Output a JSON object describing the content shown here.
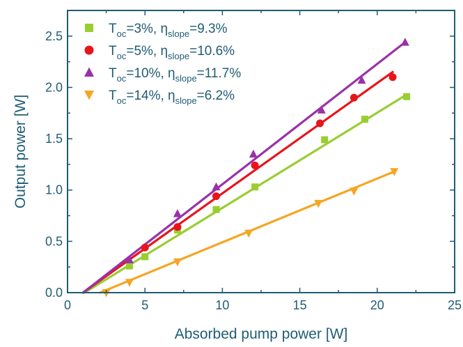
{
  "chart_data": {
    "type": "scatter",
    "title": "",
    "xlabel": "Absorbed pump power [W]",
    "ylabel": "Output power [W]",
    "xlim": [
      0,
      25
    ],
    "ylim": [
      0,
      2.75
    ],
    "xticks": [
      0,
      5,
      10,
      15,
      20,
      25
    ],
    "yticks": [
      0.0,
      0.5,
      1.0,
      1.5,
      2.0,
      2.5
    ],
    "xtick_labels": [
      "0",
      "5",
      "10",
      "15",
      "20",
      "25"
    ],
    "ytick_labels": [
      "0.0",
      "0.5",
      "1.0",
      "1.5",
      "2.0",
      "2.5"
    ],
    "grid": false,
    "legend_position": "top-left",
    "series": [
      {
        "name": "T_oc=3%, η_slope=9.3%",
        "legend": {
          "a": "T",
          "a_sub": "oc",
          "b": "=3%, η",
          "b_sub": "slope",
          "c": "=9.3%"
        },
        "marker": "square",
        "color": "#9acd32",
        "x": [
          4.0,
          5.0,
          7.1,
          9.6,
          12.1,
          16.6,
          19.2,
          21.9
        ],
        "y": [
          0.26,
          0.35,
          0.61,
          0.81,
          1.03,
          1.49,
          1.69,
          1.91
        ],
        "fit": [
          [
            1.1,
            0.0
          ],
          [
            21.9,
            1.93
          ]
        ]
      },
      {
        "name": "T_oc=5%, η_slope=10.6%",
        "legend": {
          "a": "T",
          "a_sub": "oc",
          "b": "=5%, η",
          "b_sub": "slope",
          "c": "=10.6%"
        },
        "marker": "circle",
        "color": "#e8141b",
        "x": [
          5.0,
          7.1,
          9.6,
          12.1,
          16.3,
          18.5,
          21.0
        ],
        "y": [
          0.44,
          0.64,
          0.94,
          1.24,
          1.65,
          1.9,
          2.1
        ],
        "fit": [
          [
            1.0,
            0.0
          ],
          [
            21.0,
            2.15
          ]
        ]
      },
      {
        "name": "T_oc=10%, η_slope=11.7%",
        "legend": {
          "a": "T",
          "a_sub": "oc",
          "b": "=10%, η",
          "b_sub": "slope",
          "c": "=11.7%"
        },
        "marker": "triangle-up",
        "color": "#9932a8",
        "x": [
          4.0,
          7.1,
          9.6,
          12.0,
          16.4,
          19.0,
          21.8
        ],
        "y": [
          0.32,
          0.77,
          1.03,
          1.35,
          1.78,
          2.07,
          2.44
        ],
        "fit": [
          [
            1.0,
            0.0
          ],
          [
            21.8,
            2.44
          ]
        ]
      },
      {
        "name": "T_oc=14%, η_slope=6.2%",
        "legend": {
          "a": "T",
          "a_sub": "oc",
          "b": "=14%, η",
          "b_sub": "slope",
          "c": "=6.2%"
        },
        "marker": "triangle-down",
        "color": "#f5a623",
        "x": [
          2.5,
          4.0,
          7.1,
          11.7,
          16.2,
          18.5,
          21.1
        ],
        "y": [
          0.0,
          0.1,
          0.3,
          0.58,
          0.87,
          0.99,
          1.18
        ],
        "fit": [
          [
            2.1,
            0.0
          ],
          [
            21.1,
            1.18
          ]
        ]
      }
    ]
  }
}
